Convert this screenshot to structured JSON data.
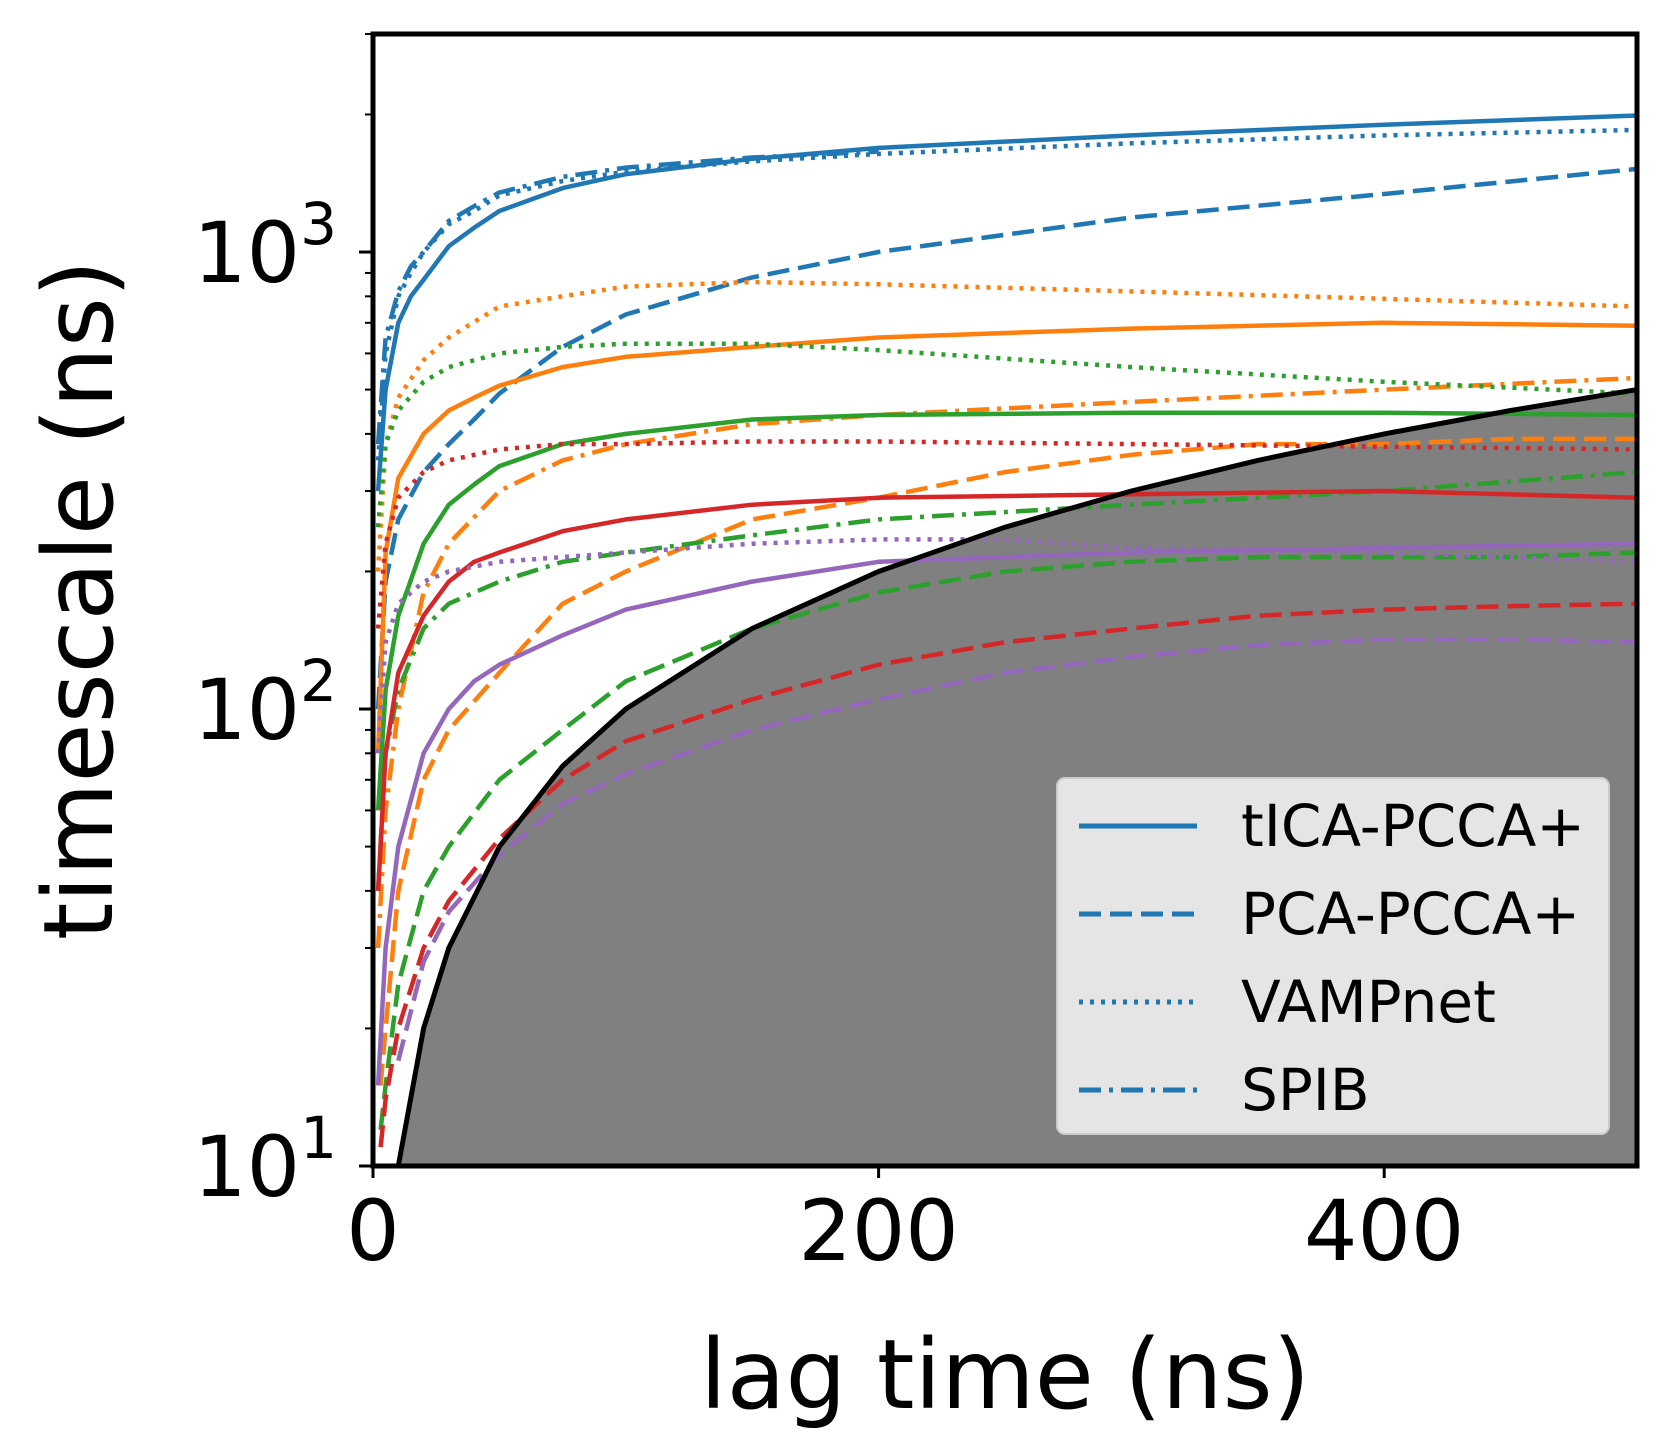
{
  "chart_data": {
    "type": "line",
    "xlabel": "lag time (ns)",
    "ylabel": "timescale (ns)",
    "xlim": [
      0,
      500
    ],
    "ylim": [
      10,
      3000
    ],
    "yscale": "log",
    "x_ticks": [
      {
        "value": 0,
        "label": "0"
      },
      {
        "value": 200,
        "label": "200"
      },
      {
        "value": 400,
        "label": "400"
      }
    ],
    "y_ticks": [
      {
        "value": 10,
        "label_base": "10",
        "label_exp": "1"
      },
      {
        "value": 100,
        "label_base": "10",
        "label_exp": "2"
      },
      {
        "value": 1000,
        "label_base": "10",
        "label_exp": "3"
      }
    ],
    "grid": false,
    "legend_position": "lower-right",
    "legend": [
      {
        "label": "tICA-PCCA+",
        "style": "solid",
        "color": "#1f77b4"
      },
      {
        "label": "PCA-PCCA+",
        "style": "dashed",
        "color": "#1f77b4"
      },
      {
        "label": "VAMPnet",
        "style": "dotted",
        "color": "#1f77b4"
      },
      {
        "label": "SPIB",
        "style": "dashdot",
        "color": "#1f77b4"
      }
    ],
    "shaded_region": {
      "description": "timescale below lag time",
      "fill_color": "#808080",
      "edge_color": "#000000",
      "x": [
        8,
        10,
        20,
        30,
        50,
        75,
        100,
        150,
        200,
        250,
        300,
        350,
        400,
        450,
        500
      ],
      "y": [
        8,
        10,
        20,
        30,
        50,
        75,
        100,
        150,
        200,
        250,
        300,
        350,
        400,
        450,
        500
      ]
    },
    "series": [
      {
        "color": "#1f77b4",
        "style": "solid",
        "x": [
          2,
          5,
          10,
          15,
          20,
          30,
          40,
          50,
          75,
          100,
          150,
          200,
          300,
          400,
          500
        ],
        "y": [
          300,
          500,
          700,
          800,
          870,
          1030,
          1130,
          1230,
          1380,
          1480,
          1600,
          1690,
          1800,
          1900,
          1990
        ]
      },
      {
        "color": "#1f77b4",
        "style": "dashed",
        "x": [
          2,
          5,
          10,
          20,
          30,
          40,
          50,
          75,
          100,
          150,
          200,
          300,
          400,
          500
        ],
        "y": [
          100,
          190,
          260,
          330,
          380,
          430,
          490,
          620,
          730,
          880,
          1000,
          1190,
          1340,
          1520
        ]
      },
      {
        "color": "#1f77b4",
        "style": "dotted",
        "x": [
          2,
          5,
          10,
          15,
          20,
          30,
          40,
          50,
          75,
          100,
          150,
          200,
          300,
          400,
          500
        ],
        "y": [
          350,
          600,
          800,
          900,
          1000,
          1150,
          1230,
          1330,
          1430,
          1500,
          1580,
          1640,
          1730,
          1800,
          1850
        ]
      },
      {
        "color": "#1f77b4",
        "style": "dashdot",
        "x": [
          2,
          5,
          10,
          15,
          20,
          30,
          40,
          50,
          75,
          100,
          150,
          200
        ],
        "y": [
          380,
          650,
          820,
          930,
          1000,
          1170,
          1260,
          1350,
          1460,
          1530,
          1610,
          1660
        ]
      },
      {
        "color": "#ff7f0e",
        "style": "solid",
        "x": [
          2,
          5,
          10,
          20,
          30,
          40,
          50,
          75,
          100,
          150,
          200,
          300,
          400,
          500
        ],
        "y": [
          80,
          220,
          320,
          400,
          450,
          480,
          510,
          560,
          590,
          620,
          650,
          680,
          700,
          690
        ]
      },
      {
        "color": "#ff7f0e",
        "style": "dashed",
        "x": [
          3,
          5,
          10,
          20,
          30,
          50,
          75,
          100,
          150,
          200,
          250,
          300,
          350,
          400,
          450,
          500
        ],
        "y": [
          15,
          20,
          40,
          70,
          90,
          120,
          170,
          200,
          260,
          290,
          330,
          360,
          380,
          380,
          390,
          390
        ]
      },
      {
        "color": "#ff7f0e",
        "style": "dotted",
        "x": [
          2,
          5,
          10,
          20,
          30,
          50,
          75,
          100,
          150,
          200,
          300,
          400,
          500
        ],
        "y": [
          200,
          380,
          480,
          580,
          650,
          760,
          800,
          840,
          860,
          850,
          820,
          790,
          760
        ]
      },
      {
        "color": "#ff7f0e",
        "style": "dashdot",
        "x": [
          2,
          5,
          10,
          20,
          30,
          50,
          75,
          100,
          150,
          200,
          300,
          400,
          500
        ],
        "y": [
          30,
          60,
          100,
          180,
          230,
          300,
          350,
          380,
          420,
          440,
          470,
          500,
          530
        ]
      },
      {
        "color": "#2ca02c",
        "style": "solid",
        "x": [
          2,
          5,
          10,
          20,
          30,
          40,
          50,
          75,
          100,
          150,
          200,
          300,
          400,
          500
        ],
        "y": [
          60,
          110,
          160,
          230,
          280,
          310,
          340,
          380,
          400,
          430,
          440,
          445,
          445,
          440
        ]
      },
      {
        "color": "#2ca02c",
        "style": "dashed",
        "x": [
          3,
          5,
          10,
          20,
          30,
          50,
          75,
          100,
          150,
          200,
          250,
          300,
          350,
          400,
          450,
          500
        ],
        "y": [
          12,
          15,
          25,
          40,
          50,
          70,
          90,
          115,
          150,
          180,
          200,
          210,
          215,
          215,
          215,
          220
        ]
      },
      {
        "color": "#2ca02c",
        "style": "dotted",
        "x": [
          2,
          5,
          10,
          20,
          30,
          50,
          75,
          100,
          150,
          200,
          300,
          400,
          500
        ],
        "y": [
          250,
          380,
          450,
          520,
          560,
          600,
          620,
          630,
          630,
          610,
          560,
          520,
          490
        ]
      },
      {
        "color": "#2ca02c",
        "style": "dashdot",
        "x": [
          2,
          5,
          10,
          20,
          30,
          50,
          75,
          100,
          150,
          200,
          300,
          400,
          500
        ],
        "y": [
          40,
          80,
          110,
          150,
          170,
          190,
          210,
          220,
          240,
          260,
          280,
          300,
          330
        ]
      },
      {
        "color": "#d62728",
        "style": "solid",
        "x": [
          2,
          5,
          10,
          20,
          30,
          40,
          50,
          75,
          100,
          150,
          200,
          300,
          400,
          500
        ],
        "y": [
          40,
          80,
          120,
          160,
          190,
          210,
          220,
          245,
          260,
          280,
          290,
          295,
          300,
          290
        ]
      },
      {
        "color": "#d62728",
        "style": "dashed",
        "x": [
          3,
          5,
          10,
          20,
          30,
          50,
          75,
          100,
          150,
          200,
          250,
          300,
          350,
          400,
          450,
          500
        ],
        "y": [
          11,
          14,
          20,
          30,
          38,
          52,
          70,
          85,
          105,
          125,
          140,
          150,
          160,
          165,
          168,
          170
        ]
      },
      {
        "color": "#d62728",
        "style": "dotted",
        "x": [
          2,
          5,
          10,
          20,
          30,
          50,
          75,
          100,
          150,
          200,
          300,
          400,
          500
        ],
        "y": [
          150,
          230,
          290,
          330,
          350,
          370,
          380,
          380,
          385,
          385,
          380,
          375,
          370
        ]
      },
      {
        "color": "#9467bd",
        "style": "solid",
        "x": [
          2,
          5,
          10,
          20,
          30,
          40,
          50,
          75,
          100,
          150,
          200,
          300,
          400,
          500
        ],
        "y": [
          15,
          30,
          50,
          80,
          100,
          115,
          125,
          145,
          165,
          190,
          210,
          220,
          225,
          230
        ]
      },
      {
        "color": "#9467bd",
        "style": "dashed",
        "x": [
          10,
          20,
          30,
          50,
          75,
          100,
          150,
          200,
          250,
          300,
          350,
          400,
          450,
          500
        ],
        "y": [
          17,
          28,
          36,
          48,
          62,
          72,
          90,
          105,
          120,
          130,
          138,
          142,
          142,
          140
        ]
      },
      {
        "color": "#9467bd",
        "style": "dotted",
        "x": [
          2,
          5,
          10,
          20,
          30,
          50,
          75,
          100,
          150,
          200,
          250,
          300,
          400,
          500
        ],
        "y": [
          80,
          140,
          170,
          190,
          200,
          210,
          215,
          220,
          230,
          235,
          235,
          225,
          220,
          210
        ]
      }
    ]
  }
}
